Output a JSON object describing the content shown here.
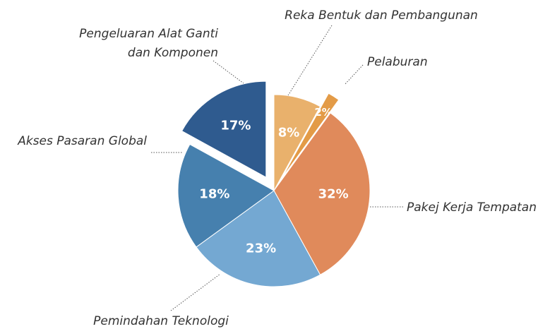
{
  "chart_data": {
    "type": "pie",
    "categories": [
      "Reka Bentuk dan Pembangunan",
      "Pelaburan",
      "Pakej Kerja Tempatan",
      "Pemindahan Teknologi",
      "Akses Pasaran Global",
      [
        "Pengeluaran Alat Ganti",
        "dan Komponen"
      ]
    ],
    "values": [
      8,
      2,
      32,
      23,
      18,
      17
    ],
    "value_labels": [
      "8%",
      "2%",
      "32%",
      "23%",
      "18%",
      "17%"
    ],
    "colors": [
      "#e9b16c",
      "#e39b47",
      "#e08a5b",
      "#74a8d2",
      "#4680ae",
      "#2f5b8f"
    ],
    "exploded": [
      false,
      true,
      false,
      false,
      false,
      true
    ]
  }
}
